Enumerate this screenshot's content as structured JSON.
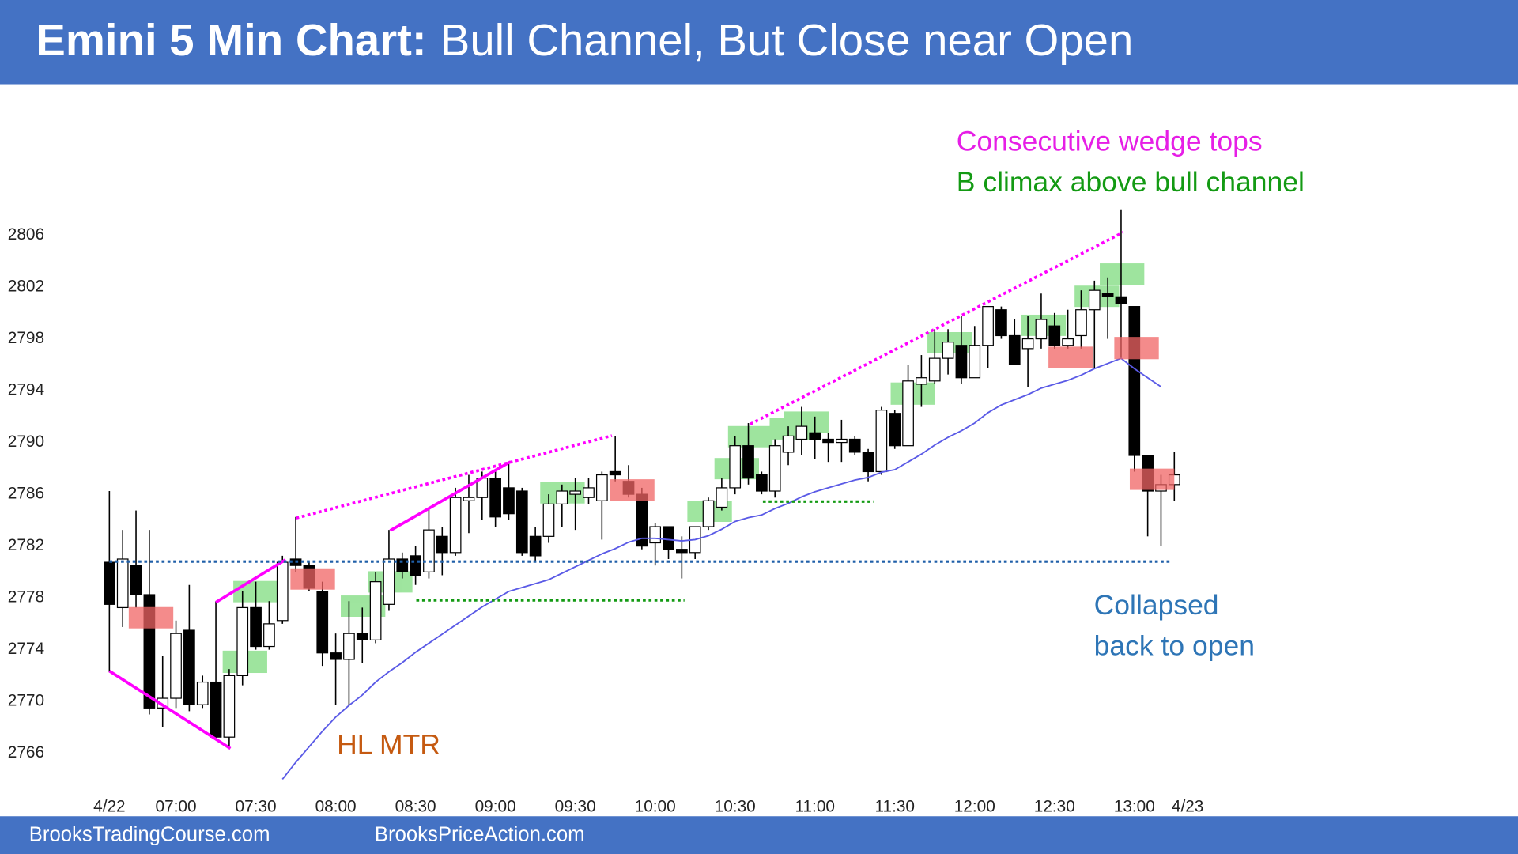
{
  "chart_data": {
    "type": "candlestick",
    "title": "Emini 5 Min Chart:",
    "subtitle": "Bull Channel, But Close near Open",
    "categories": [
      "4/22",
      null,
      null,
      null,
      null,
      "07:00",
      null,
      null,
      null,
      null,
      null,
      "07:30",
      null,
      null,
      null,
      null,
      null,
      "08:00",
      null,
      null,
      null,
      null,
      null,
      "08:30",
      null,
      null,
      null,
      null,
      null,
      "09:00",
      null,
      null,
      null,
      null,
      null,
      "09:30",
      null,
      null,
      null,
      null,
      null,
      "10:00",
      null,
      null,
      null,
      null,
      null,
      "10:30",
      null,
      null,
      null,
      null,
      null,
      "11:00",
      null,
      null,
      null,
      null,
      null,
      "11:30",
      null,
      null,
      null,
      null,
      null,
      "12:00",
      null,
      null,
      null,
      null,
      null,
      "12:30",
      null,
      null,
      null,
      null,
      null,
      "13:00",
      null,
      null,
      null,
      "4/23"
    ],
    "open": [
      2780.75,
      2777.25,
      2780.5,
      2778.25,
      2769.5,
      2770.25,
      2775.5,
      2769.75,
      2771.5,
      2767.25,
      2772,
      2777.25,
      2774.25,
      2776.25,
      2781,
      2780.5,
      2778.5,
      2773.75,
      2773.25,
      2775.25,
      2774.75,
      2777.5,
      2781,
      2781.25,
      2780,
      2782.75,
      2781.5,
      2785.5,
      2785.75,
      2787.25,
      2786.5,
      2786.25,
      2782.75,
      2782.75,
      2785.25,
      2786,
      2785.75,
      2785.5,
      2787.75,
      2787,
      2786,
      2782.25,
      2783.5,
      2781.75,
      2781.5,
      2783.5,
      2785,
      2786.5,
      2789.75,
      2787.5,
      2786.25,
      2789.25,
      2790.25,
      2790.75,
      2790.25,
      2790,
      2790.25,
      2789.25,
      2787.75,
      2792.25,
      2789.75,
      2794.5,
      2794.75,
      2796.5,
      2797.5,
      2795,
      2797.5,
      2800.25,
      2798.25,
      2797.25,
      2798,
      2799,
      2797.5,
      2798.25,
      2800.25,
      2801.5,
      2801.25,
      2800.5,
      2789,
      2786.25,
      2786.75,
      null
    ],
    "high": [
      2786.25,
      2783.25,
      2784.75,
      2783.25,
      2773.5,
      2776.25,
      2779,
      2772,
      2777.75,
      2772.5,
      2778.5,
      2779.25,
      2777.75,
      2781.25,
      2784.25,
      2780.75,
      2779.25,
      2775.25,
      2777.75,
      2777.25,
      2780,
      2783.25,
      2781.5,
      2782,
      2785,
      2783.5,
      2786.5,
      2787.5,
      2787.75,
      2787.75,
      2788.5,
      2786.5,
      2783.5,
      2786,
      2786.75,
      2787.25,
      2787.25,
      2787.75,
      2790.5,
      2788.25,
      2786.5,
      2783.75,
      2783.5,
      2782.75,
      2783.5,
      2785.75,
      2787.25,
      2790.5,
      2791.5,
      2787.75,
      2790.25,
      2791.25,
      2792.75,
      2792,
      2790.75,
      2791.75,
      2790.5,
      2789.5,
      2792.75,
      2792.5,
      2796,
      2796.75,
      2798.75,
      2798.75,
      2799.75,
      2799,
      2800.5,
      2800.5,
      2799.5,
      2799.75,
      2801.5,
      2800,
      2800.25,
      2801.75,
      2802.5,
      2802.75,
      2808,
      2800.5,
      2789,
      2787.5,
      2789.25,
      null
    ],
    "low": [
      2772.25,
      2775.75,
      2777.25,
      2769,
      2768,
      2769.5,
      2769.25,
      2769.5,
      2767,
      2766.5,
      2771.25,
      2774,
      2774,
      2776,
      2780,
      2778.5,
      2772.75,
      2769.75,
      2769.75,
      2773,
      2774.5,
      2777,
      2779.5,
      2779,
      2779.5,
      2779.75,
      2781.25,
      2783,
      2784,
      2783.5,
      2784,
      2781.25,
      2780.75,
      2782.25,
      2783.5,
      2783.25,
      2785.25,
      2782.5,
      2787,
      2785.75,
      2781.75,
      2780.5,
      2781,
      2779.5,
      2781,
      2783.25,
      2784.75,
      2786,
      2786.75,
      2786,
      2785.75,
      2788.25,
      2789,
      2788.75,
      2788.5,
      2788.5,
      2789,
      2787,
      2787.5,
      2789.5,
      2789.75,
      2792.75,
      2794.5,
      2795.25,
      2794.5,
      2795,
      2795.75,
      2798,
      2796,
      2794.25,
      2797.25,
      2797.25,
      2797.25,
      2797.25,
      2795.75,
      2798,
      2796.5,
      2787.75,
      2782.75,
      2782,
      2785.5,
      null
    ],
    "close": [
      2777.5,
      2781,
      2778.25,
      2769.5,
      2770.25,
      2775.25,
      2769.75,
      2771.5,
      2767.25,
      2772,
      2777.25,
      2774.25,
      2776,
      2780.75,
      2780.5,
      2778.75,
      2773.75,
      2773.25,
      2775.25,
      2774.75,
      2779.25,
      2781,
      2780,
      2779.75,
      2783.25,
      2781.5,
      2785.75,
      2785.75,
      2787.25,
      2784.25,
      2784.5,
      2781.5,
      2781.25,
      2785.25,
      2786.25,
      2786.25,
      2786.5,
      2787.5,
      2787.5,
      2786,
      2782,
      2783.5,
      2781.75,
      2781.5,
      2783.5,
      2785.5,
      2786.5,
      2789.75,
      2787.25,
      2786.25,
      2789.75,
      2790.5,
      2791.25,
      2790.25,
      2790,
      2790.25,
      2789.25,
      2787.75,
      2792.5,
      2789.75,
      2794.75,
      2795,
      2796.5,
      2797.75,
      2795,
      2797.5,
      2800.5,
      2798.25,
      2796,
      2798,
      2799.5,
      2797.5,
      2798,
      2800.25,
      2801.75,
      2801.25,
      2800.75,
      2789,
      2786.25,
      2786.75,
      2787.5,
      null
    ],
    "up_color": "#ffffff",
    "down_color": "#000000",
    "ema": {
      "color": "#5a5ae6",
      "values": [
        null,
        null,
        null,
        null,
        null,
        null,
        null,
        null,
        null,
        null,
        null,
        null,
        null,
        2764,
        2765.3,
        2766.5,
        2767.7,
        2768.8,
        2769.7,
        2770.5,
        2771.5,
        2772.3,
        2773,
        2773.8,
        2774.5,
        2775.2,
        2775.9,
        2776.6,
        2777.3,
        2777.9,
        2778.5,
        2778.8,
        2779.1,
        2779.4,
        2779.9,
        2780.4,
        2780.9,
        2781.4,
        2781.8,
        2782.3,
        2782.6,
        2782.6,
        2782.5,
        2782.4,
        2782.5,
        2782.8,
        2783.3,
        2783.9,
        2784.2,
        2784.4,
        2784.9,
        2785.3,
        2785.8,
        2786.2,
        2786.5,
        2786.8,
        2787.1,
        2787.3,
        2787.7,
        2787.9,
        2788.5,
        2789.1,
        2789.8,
        2790.4,
        2790.9,
        2791.5,
        2792.3,
        2792.9,
        2793.3,
        2793.7,
        2794.2,
        2794.5,
        2794.8,
        2795.2,
        2795.7,
        2796.1,
        2796.5,
        2795.7,
        2795,
        2794.3,
        null,
        null
      ]
    },
    "ylim": [
      2762,
      2813
    ],
    "yticks": [
      2766,
      2770,
      2774,
      2778,
      2782,
      2786,
      2790,
      2794,
      2798,
      2802,
      2806
    ],
    "grid": false,
    "annotations": [
      {
        "text": "Consecutive wedge tops",
        "color": "#e61ee6"
      },
      {
        "text": "B climax above bull channel",
        "color": "#139a13"
      },
      {
        "text": "HL MTR",
        "color": "#c55a11"
      },
      {
        "text": "Collapsed",
        "color": "#2e75b6"
      },
      {
        "text": "back to open",
        "color": "#2e75b6"
      }
    ]
  },
  "footer": [
    "BrooksTradingCourse.com",
    "BrooksPriceAction.com"
  ]
}
